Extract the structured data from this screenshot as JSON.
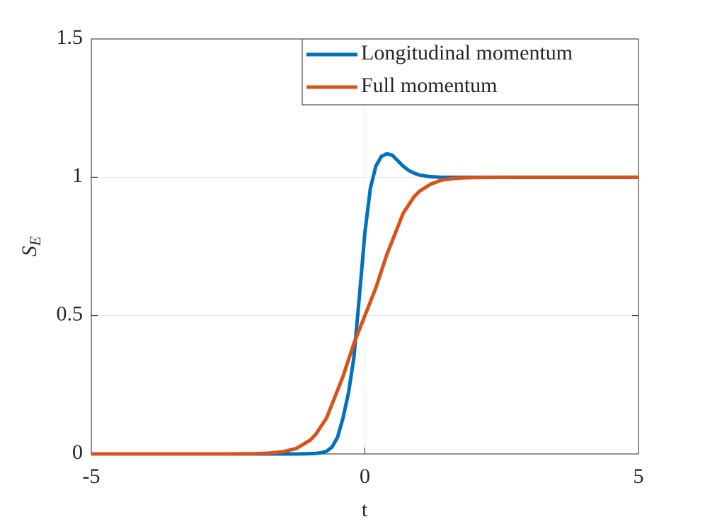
{
  "chart_data": {
    "type": "line",
    "xlabel": "t",
    "ylabel": [
      "S",
      "E"
    ],
    "x": [
      -5,
      -4,
      -3,
      -2.5,
      -2,
      -1.75,
      -1.5,
      -1.25,
      -1,
      -0.9,
      -0.8,
      -0.7,
      -0.6,
      -0.5,
      -0.4,
      -0.3,
      -0.2,
      -0.1,
      0,
      0.1,
      0.2,
      0.3,
      0.4,
      0.5,
      0.6,
      0.7,
      0.8,
      0.9,
      1,
      1.2,
      1.4,
      1.6,
      1.8,
      2,
      2.5,
      3,
      4,
      5
    ],
    "series": [
      {
        "name": "Longitudinal momentum",
        "color": "#0072BD",
        "values": [
          0,
          0,
          0,
          0,
          0,
          0,
          0,
          0,
          0.001,
          0.002,
          0.004,
          0.01,
          0.025,
          0.06,
          0.13,
          0.22,
          0.35,
          0.57,
          0.8,
          0.96,
          1.04,
          1.075,
          1.085,
          1.08,
          1.06,
          1.04,
          1.025,
          1.015,
          1.008,
          1.002,
          1,
          1,
          1,
          1,
          1,
          1,
          1,
          1
        ]
      },
      {
        "name": "Full momentum",
        "color": "#D95319",
        "values": [
          0,
          0,
          0,
          0,
          0.001,
          0.003,
          0.008,
          0.02,
          0.05,
          0.07,
          0.1,
          0.13,
          0.18,
          0.23,
          0.28,
          0.34,
          0.4,
          0.45,
          0.5,
          0.55,
          0.6,
          0.66,
          0.72,
          0.77,
          0.82,
          0.87,
          0.9,
          0.93,
          0.95,
          0.975,
          0.99,
          0.995,
          0.998,
          0.999,
          1,
          1,
          1,
          1
        ]
      }
    ],
    "xlim": [
      -5,
      5
    ],
    "ylim": [
      0,
      1.5
    ],
    "xticks": [
      -5,
      0,
      5
    ],
    "yticks": [
      0,
      0.5,
      1,
      1.5
    ],
    "grid": true,
    "legend": "northeast"
  }
}
